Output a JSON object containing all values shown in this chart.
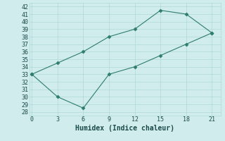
{
  "xlabel": "Humidex (Indice chaleur)",
  "x": [
    0,
    3,
    6,
    9,
    12,
    15,
    18,
    21
  ],
  "line1_y": [
    33,
    34.5,
    36,
    38,
    39,
    41.5,
    41,
    38.5
  ],
  "line2_y": [
    33,
    30,
    28.5,
    33,
    34,
    35.5,
    37,
    38.5
  ],
  "line_color": "#2e7d6e",
  "marker": "D",
  "marker_size": 2.5,
  "bg_color": "#d0ecec",
  "grid_color": "#b0d8d8",
  "ylim": [
    27.5,
    42.5
  ],
  "xlim": [
    -0.3,
    22
  ],
  "yticks": [
    28,
    29,
    30,
    31,
    32,
    33,
    34,
    35,
    36,
    37,
    38,
    39,
    40,
    41,
    42
  ],
  "xticks": [
    0,
    3,
    6,
    9,
    12,
    15,
    18,
    21
  ],
  "font_color": "#1a4a4a",
  "tick_fontsize": 6,
  "xlabel_fontsize": 7
}
